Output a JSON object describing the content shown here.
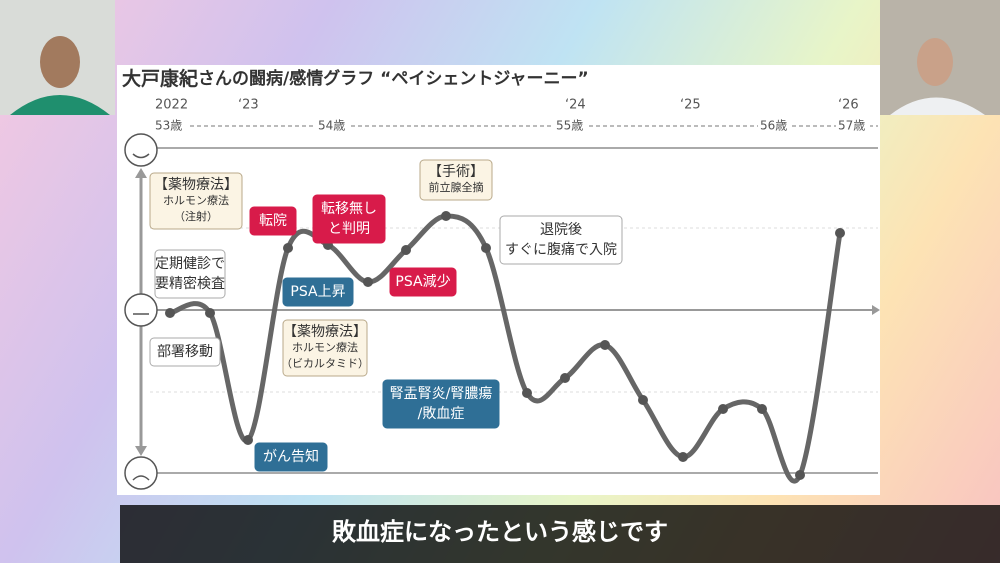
{
  "slide": {
    "title_main": "大戸康紀",
    "title_rest": "さんの闘病/感情グラフ “ペイシェントジャーニー”",
    "years": [
      "2022",
      "‘23",
      "‘24",
      "‘25",
      "‘26"
    ],
    "ages": [
      "53歳",
      "54歳",
      "55歳",
      "56歳",
      "57歳"
    ],
    "annotations": [
      {
        "kind": "note",
        "lines": [
          "【薬物療法】",
          "ホルモン療法",
          "（注射）"
        ]
      },
      {
        "kind": "plain",
        "lines": [
          "定期健診で",
          "要精密検査"
        ]
      },
      {
        "kind": "plain",
        "lines": [
          "部署移動"
        ]
      },
      {
        "kind": "down",
        "lines": [
          "がん告知"
        ]
      },
      {
        "kind": "up",
        "lines": [
          "転院"
        ]
      },
      {
        "kind": "up",
        "lines": [
          "転移無し",
          "と判明"
        ]
      },
      {
        "kind": "down",
        "lines": [
          "PSA上昇"
        ]
      },
      {
        "kind": "note",
        "lines": [
          "【薬物療法】",
          "ホルモン療法",
          "（ビカルタミド）"
        ]
      },
      {
        "kind": "up",
        "lines": [
          "PSA減少"
        ]
      },
      {
        "kind": "note",
        "lines": [
          "【手術】",
          "前立腺全摘"
        ]
      },
      {
        "kind": "plain",
        "lines": [
          "退院後",
          "すぐに腹痛で入院"
        ]
      },
      {
        "kind": "down",
        "lines": [
          "腎盂腎炎/腎膿瘍",
          "/敗血症"
        ]
      }
    ]
  },
  "subtitle": "敗血症になったという感じです"
}
